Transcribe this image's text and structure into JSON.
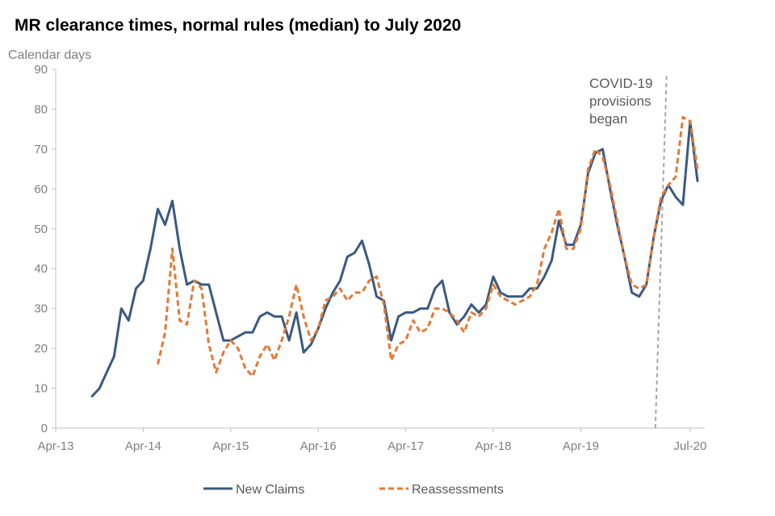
{
  "chart_data": {
    "type": "line",
    "title": "MR clearance times, normal rules (median) to July 2020",
    "ylabel": "Calendar days",
    "ylim": [
      0,
      90
    ],
    "yticks": [
      0,
      10,
      20,
      30,
      40,
      50,
      60,
      70,
      80,
      90
    ],
    "x_range": [
      "2013-04",
      "2020-09"
    ],
    "xticks": [
      {
        "label": "Apr-13",
        "date": "2013-04"
      },
      {
        "label": "Apr-14",
        "date": "2014-04"
      },
      {
        "label": "Apr-15",
        "date": "2015-04"
      },
      {
        "label": "Apr-16",
        "date": "2016-04"
      },
      {
        "label": "Apr-17",
        "date": "2017-04"
      },
      {
        "label": "Apr-18",
        "date": "2018-04"
      },
      {
        "label": "Apr-19",
        "date": "2019-04"
      },
      {
        "label": "Jul-20",
        "date": "2020-07"
      }
    ],
    "grid": false,
    "legend": "bottom",
    "annotation": {
      "lines": [
        "COVID-19",
        "provisions",
        "began"
      ],
      "date": "2020-03"
    },
    "series": [
      {
        "name": "New Claims",
        "color": "#3a5a80",
        "style": "solid",
        "points": [
          [
            "2013-09",
            8
          ],
          [
            "2013-10",
            10
          ],
          [
            "2013-11",
            14
          ],
          [
            "2013-12",
            18
          ],
          [
            "2014-01",
            30
          ],
          [
            "2014-02",
            27
          ],
          [
            "2014-03",
            35
          ],
          [
            "2014-04",
            37
          ],
          [
            "2014-05",
            45
          ],
          [
            "2014-06",
            55
          ],
          [
            "2014-07",
            51
          ],
          [
            "2014-08",
            57
          ],
          [
            "2014-09",
            45
          ],
          [
            "2014-10",
            36
          ],
          [
            "2014-11",
            37
          ],
          [
            "2014-12",
            36
          ],
          [
            "2015-01",
            36
          ],
          [
            "2015-02",
            29
          ],
          [
            "2015-03",
            22
          ],
          [
            "2015-04",
            22
          ],
          [
            "2015-05",
            23
          ],
          [
            "2015-06",
            24
          ],
          [
            "2015-07",
            24
          ],
          [
            "2015-08",
            28
          ],
          [
            "2015-09",
            29
          ],
          [
            "2015-10",
            28
          ],
          [
            "2015-11",
            28
          ],
          [
            "2015-12",
            22
          ],
          [
            "2016-01",
            29
          ],
          [
            "2016-02",
            19
          ],
          [
            "2016-03",
            21
          ],
          [
            "2016-04",
            25
          ],
          [
            "2016-05",
            30
          ],
          [
            "2016-06",
            34
          ],
          [
            "2016-07",
            37
          ],
          [
            "2016-08",
            43
          ],
          [
            "2016-09",
            44
          ],
          [
            "2016-10",
            47
          ],
          [
            "2016-11",
            41
          ],
          [
            "2016-12",
            33
          ],
          [
            "2017-01",
            32
          ],
          [
            "2017-02",
            22
          ],
          [
            "2017-03",
            28
          ],
          [
            "2017-04",
            29
          ],
          [
            "2017-05",
            29
          ],
          [
            "2017-06",
            30
          ],
          [
            "2017-07",
            30
          ],
          [
            "2017-08",
            35
          ],
          [
            "2017-09",
            37
          ],
          [
            "2017-10",
            29
          ],
          [
            "2017-11",
            26
          ],
          [
            "2017-12",
            28
          ],
          [
            "2018-01",
            31
          ],
          [
            "2018-02",
            29
          ],
          [
            "2018-03",
            31
          ],
          [
            "2018-04",
            38
          ],
          [
            "2018-05",
            34
          ],
          [
            "2018-06",
            33
          ],
          [
            "2018-07",
            33
          ],
          [
            "2018-08",
            33
          ],
          [
            "2018-09",
            35
          ],
          [
            "2018-10",
            35
          ],
          [
            "2018-11",
            38
          ],
          [
            "2018-12",
            42
          ],
          [
            "2019-01",
            52
          ],
          [
            "2019-02",
            46
          ],
          [
            "2019-03",
            46
          ],
          [
            "2019-04",
            51
          ],
          [
            "2019-05",
            64
          ],
          [
            "2019-06",
            69
          ],
          [
            "2019-07",
            70
          ],
          [
            "2019-08",
            60
          ],
          [
            "2019-09",
            51
          ],
          [
            "2019-10",
            43
          ],
          [
            "2019-11",
            34
          ],
          [
            "2019-12",
            33
          ],
          [
            "2020-01",
            36
          ],
          [
            "2020-02",
            48
          ],
          [
            "2020-03",
            57
          ],
          [
            "2020-04",
            61
          ],
          [
            "2020-05",
            58
          ],
          [
            "2020-06",
            56
          ],
          [
            "2020-07",
            77
          ],
          [
            "2020-08",
            62
          ]
        ]
      },
      {
        "name": "Reassessments",
        "color": "#e07b39",
        "style": "dashed",
        "points": [
          [
            "2014-06",
            16
          ],
          [
            "2014-07",
            24
          ],
          [
            "2014-08",
            45
          ],
          [
            "2014-09",
            27
          ],
          [
            "2014-10",
            26
          ],
          [
            "2014-11",
            37
          ],
          [
            "2014-12",
            35
          ],
          [
            "2015-01",
            21
          ],
          [
            "2015-02",
            14
          ],
          [
            "2015-03",
            19
          ],
          [
            "2015-04",
            22
          ],
          [
            "2015-05",
            20
          ],
          [
            "2015-06",
            15
          ],
          [
            "2015-07",
            13
          ],
          [
            "2015-08",
            18
          ],
          [
            "2015-09",
            21
          ],
          [
            "2015-10",
            17
          ],
          [
            "2015-11",
            22
          ],
          [
            "2015-12",
            28
          ],
          [
            "2016-01",
            36
          ],
          [
            "2016-02",
            28
          ],
          [
            "2016-03",
            22
          ],
          [
            "2016-04",
            25
          ],
          [
            "2016-05",
            32
          ],
          [
            "2016-06",
            33
          ],
          [
            "2016-07",
            35
          ],
          [
            "2016-08",
            32
          ],
          [
            "2016-09",
            34
          ],
          [
            "2016-10",
            34
          ],
          [
            "2016-11",
            37
          ],
          [
            "2016-12",
            38
          ],
          [
            "2017-01",
            31
          ],
          [
            "2017-02",
            17
          ],
          [
            "2017-03",
            21
          ],
          [
            "2017-04",
            22
          ],
          [
            "2017-05",
            27
          ],
          [
            "2017-06",
            24
          ],
          [
            "2017-07",
            25
          ],
          [
            "2017-08",
            30
          ],
          [
            "2017-09",
            30
          ],
          [
            "2017-10",
            29
          ],
          [
            "2017-11",
            27
          ],
          [
            "2017-12",
            24
          ],
          [
            "2018-01",
            29
          ],
          [
            "2018-02",
            28
          ],
          [
            "2018-03",
            30
          ],
          [
            "2018-04",
            36
          ],
          [
            "2018-05",
            33
          ],
          [
            "2018-06",
            32
          ],
          [
            "2018-07",
            31
          ],
          [
            "2018-08",
            32
          ],
          [
            "2018-09",
            33
          ],
          [
            "2018-10",
            36
          ],
          [
            "2018-11",
            45
          ],
          [
            "2018-12",
            49
          ],
          [
            "2019-01",
            55
          ],
          [
            "2019-02",
            45
          ],
          [
            "2019-03",
            45
          ],
          [
            "2019-04",
            50
          ],
          [
            "2019-05",
            65
          ],
          [
            "2019-06",
            70
          ],
          [
            "2019-07",
            68
          ],
          [
            "2019-08",
            61
          ],
          [
            "2019-09",
            52
          ],
          [
            "2019-10",
            43
          ],
          [
            "2019-11",
            36
          ],
          [
            "2019-12",
            35
          ],
          [
            "2020-01",
            36
          ],
          [
            "2020-02",
            48
          ],
          [
            "2020-03",
            58
          ],
          [
            "2020-04",
            61
          ],
          [
            "2020-05",
            63
          ],
          [
            "2020-06",
            78
          ],
          [
            "2020-07",
            77
          ],
          [
            "2020-08",
            65
          ]
        ]
      }
    ]
  }
}
